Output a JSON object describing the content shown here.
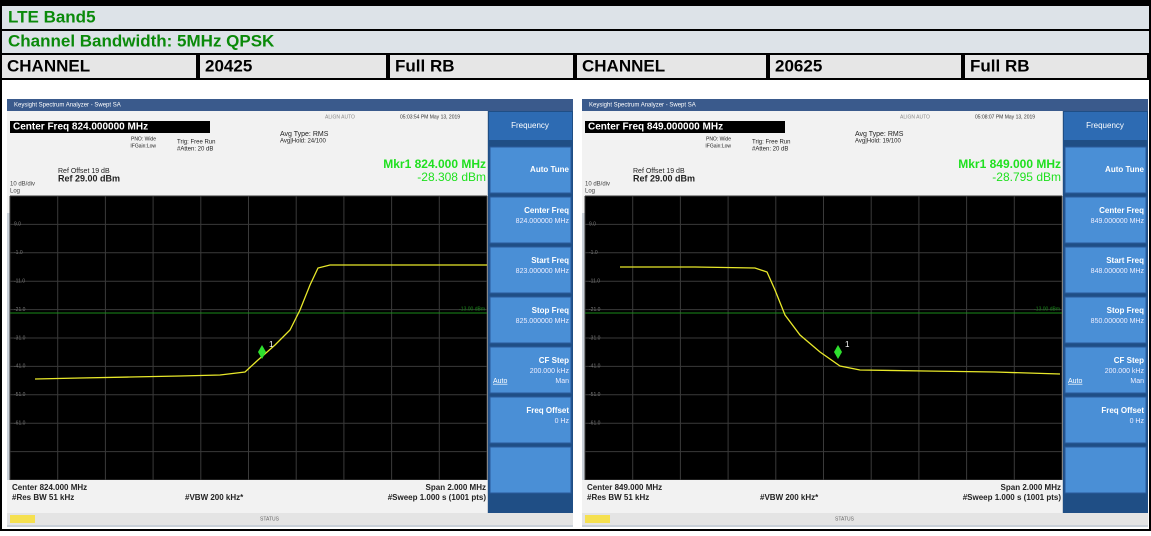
{
  "header": {
    "band": "LTE Band5",
    "bandwidth": "Channel Bandwidth: 5MHz QPSK"
  },
  "channels": [
    {
      "label": "CHANNEL",
      "channel": "20425",
      "rb": "Full  RB"
    },
    {
      "label": "CHANNEL",
      "channel": "20625",
      "rb": "Full  RB"
    }
  ],
  "panels": [
    {
      "window_title": "Keysight Spectrum Analyzer - Swept SA",
      "align": "ALIGN AUTO",
      "time": "05:03:54 PM May 13, 2019",
      "center_freq_title": "Center Freq 824.000000 MHz",
      "pno": "PNO: Wide",
      "ifgain": "IFGain:Low",
      "trig": "Trig: Free Run",
      "atten": "#Atten: 20 dB",
      "avg_type": "Avg Type: RMS",
      "avg_hold": "Avg|Hold: 24/100",
      "marker_freq": "Mkr1 824.000 MHz",
      "marker_level": "-28.308 dBm",
      "ref_offset": "Ref Offset 19 dB",
      "ref_level": "Ref 29.00 dBm",
      "scale": "10 dB/div",
      "log": "Log",
      "y_labels": [
        "9.0",
        "-1.0",
        "-11.0",
        "-21.0",
        "-31.0",
        "-41.0",
        "-51.0",
        "-61.0"
      ],
      "limit_label": "-13.00 dBm",
      "marker_id": "1",
      "center": "Center 824.000 MHz",
      "rbw": "#Res BW 51 kHz",
      "vbw": "#VBW 200 kHz*",
      "span": "Span 2.000 MHz",
      "sweep": "#Sweep  1.000 s (1001 pts)",
      "status": "STATUS",
      "softkeys": {
        "title": "Frequency",
        "items": [
          {
            "label": "Auto Tune"
          },
          {
            "label": "Center Freq",
            "value": "824.000000 MHz"
          },
          {
            "label": "Start Freq",
            "value": "823.000000 MHz"
          },
          {
            "label": "Stop Freq",
            "value": "825.000000 MHz"
          },
          {
            "label": "CF Step",
            "value": "200.000 kHz",
            "auto": "Auto",
            "man": "Man"
          },
          {
            "label": "Freq Offset",
            "value": "0 Hz"
          }
        ]
      }
    },
    {
      "window_title": "Keysight Spectrum Analyzer - Swept SA",
      "align": "ALIGN AUTO",
      "time": "05:08:07 PM May 13, 2019",
      "center_freq_title": "Center Freq 849.000000 MHz",
      "pno": "PNO: Wide",
      "ifgain": "IFGain:Low",
      "trig": "Trig: Free Run",
      "atten": "#Atten: 20 dB",
      "avg_type": "Avg Type: RMS",
      "avg_hold": "Avg|Hold: 19/100",
      "marker_freq": "Mkr1 849.000 MHz",
      "marker_level": "-28.795 dBm",
      "ref_offset": "Ref Offset 19 dB",
      "ref_level": "Ref 29.00 dBm",
      "scale": "10 dB/div",
      "log": "Log",
      "y_labels": [
        "9.0",
        "-1.0",
        "-11.0",
        "-21.0",
        "-31.0",
        "-41.0",
        "-51.0",
        "-61.0"
      ],
      "limit_label": "-13.00 dBm",
      "marker_id": "1",
      "center": "Center 849.000 MHz",
      "rbw": "#Res BW 51 kHz",
      "vbw": "#VBW 200 kHz*",
      "span": "Span 2.000 MHz",
      "sweep": "#Sweep  1.000 s (1001 pts)",
      "status": "STATUS",
      "softkeys": {
        "title": "Frequency",
        "items": [
          {
            "label": "Auto Tune"
          },
          {
            "label": "Center Freq",
            "value": "849.000000 MHz"
          },
          {
            "label": "Start Freq",
            "value": "848.000000 MHz"
          },
          {
            "label": "Stop Freq",
            "value": "850.000000 MHz"
          },
          {
            "label": "CF Step",
            "value": "200.000 kHz",
            "auto": "Auto",
            "man": "Man"
          },
          {
            "label": "Freq Offset",
            "value": "0 Hz"
          }
        ]
      }
    }
  ]
}
